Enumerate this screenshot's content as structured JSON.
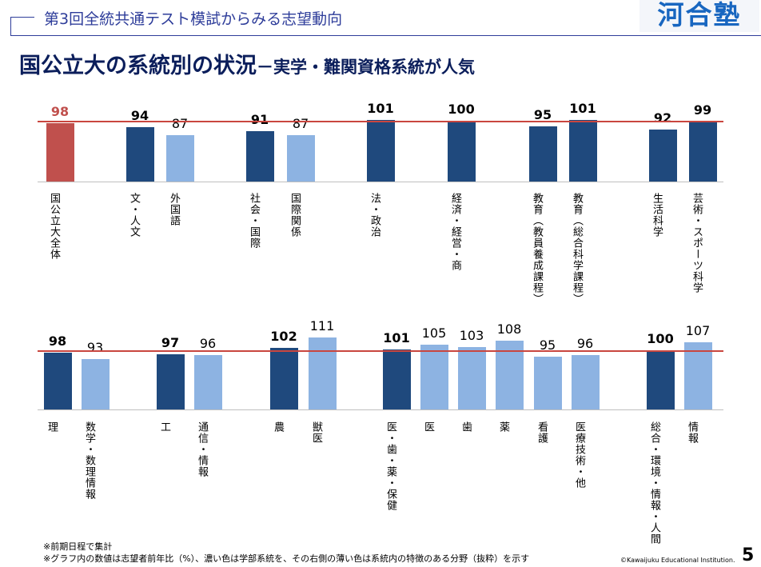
{
  "header": {
    "subtitle": "第3回全統共通テスト模試からみる志望動向",
    "logo": "河合塾"
  },
  "title": {
    "main": "国公立大の系統別の状況",
    "sub": "－実学・難関資格系統が人気"
  },
  "colors": {
    "dark": "#1f497d",
    "light": "#8db3e2",
    "highlight": "#c0504d",
    "reference": "#c9463f"
  },
  "chart_data": [
    {
      "type": "bar",
      "reference_value": 100,
      "ylabel": "志望者前年比（%）",
      "categories": [
        "国公立大全体",
        "文・人文",
        "外国語",
        "社会・国際",
        "国際関係",
        "法・政治",
        "経済・経営・商",
        "教育（教員養成課程）",
        "教育（総合科学課程）",
        "生活科学",
        "芸術・スポーツ科学"
      ],
      "values": [
        98,
        94,
        87,
        91,
        87,
        101,
        100,
        95,
        101,
        92,
        99
      ],
      "kind": [
        "total",
        "dark",
        "light",
        "dark",
        "light",
        "dark",
        "dark",
        "dark",
        "dark",
        "dark",
        "dark"
      ]
    },
    {
      "type": "bar",
      "reference_value": 100,
      "ylabel": "志望者前年比（%）",
      "categories": [
        "理",
        "数学・数理情報",
        "工",
        "通信・情報",
        "農",
        "獣医",
        "医・歯・薬・保健",
        "医",
        "歯",
        "薬",
        "看護",
        "医療技術・他",
        "総合・環境・情報・人間",
        "情報"
      ],
      "values": [
        98,
        93,
        97,
        96,
        102,
        111,
        101,
        105,
        103,
        108,
        95,
        96,
        100,
        107
      ],
      "kind": [
        "dark",
        "light",
        "dark",
        "light",
        "dark",
        "light",
        "dark",
        "light",
        "light",
        "light",
        "light",
        "light",
        "dark",
        "light"
      ]
    }
  ],
  "footer": {
    "note1": "※前期日程で集計",
    "note2": "※グラフ内の数値は志望者前年比（%）、濃い色は学部系統を、その右側の薄い色は系統内の特徴のある分野（抜粋）を示す",
    "copyright": "©Kawaijuku Educational Institution.",
    "page": "5"
  }
}
